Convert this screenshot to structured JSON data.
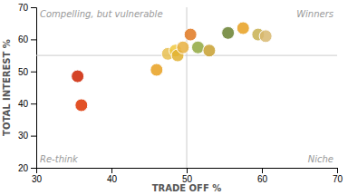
{
  "chart_data": {
    "type": "scatter",
    "xlabel": "TRADE OFF %",
    "ylabel": "TOTAL INTEREST %",
    "x": [
      35.5,
      36.0,
      46.0,
      47.5,
      48.5,
      48.8,
      49.5,
      50.5,
      51.5,
      53.0,
      55.5,
      57.5,
      59.5,
      60.5
    ],
    "values": [
      48.5,
      39.5,
      50.5,
      55.5,
      56.5,
      55.0,
      57.5,
      61.5,
      57.5,
      56.5,
      62.0,
      63.5,
      61.5,
      61.0
    ],
    "colors": [
      "#cc2200",
      "#dd3300",
      "#e8a020",
      "#e8c050",
      "#f0c840",
      "#e0b030",
      "#e8b040",
      "#e07820",
      "#90a840",
      "#c8a030",
      "#688030",
      "#e8a020",
      "#c8b050",
      "#d8b870"
    ],
    "xlim": [
      30,
      70
    ],
    "ylim": [
      20,
      70
    ],
    "xticks": [
      30,
      40,
      50,
      60,
      70
    ],
    "yticks": [
      20,
      30,
      40,
      50,
      60,
      70
    ],
    "grid": false,
    "midpoint_x": 50,
    "midpoint_y": 55,
    "annotations": [
      "Compelling, but vulnerable",
      "Winners",
      "Re-think",
      "Niche"
    ]
  }
}
